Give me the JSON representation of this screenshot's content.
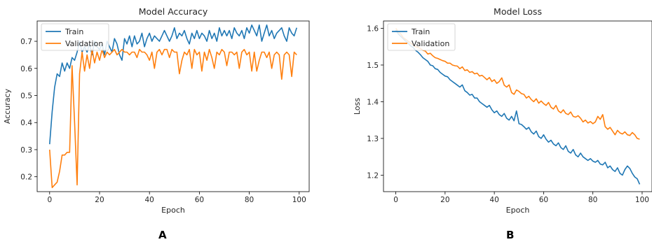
{
  "panels": [
    {
      "letter": "A"
    },
    {
      "letter": "B"
    }
  ],
  "chart_data": [
    {
      "type": "line",
      "title": "Model Accuracy",
      "xlabel": "Epoch",
      "ylabel": "Accuracy",
      "xlim": [
        -5,
        104
      ],
      "ylim": [
        0.145,
        0.775
      ],
      "xticks": [
        0,
        20,
        40,
        60,
        80,
        100
      ],
      "yticks": [
        0.2,
        0.3,
        0.4,
        0.5,
        0.6,
        0.7
      ],
      "grid": false,
      "legend_position": "top-left",
      "series": [
        {
          "name": "Train",
          "color": "#1f77b4",
          "x": [
            0,
            1,
            2,
            3,
            4,
            5,
            6,
            7,
            8,
            9,
            10,
            11,
            12,
            13,
            14,
            15,
            16,
            17,
            18,
            19,
            20,
            21,
            22,
            23,
            24,
            25,
            26,
            27,
            28,
            29,
            30,
            31,
            32,
            33,
            34,
            35,
            36,
            37,
            38,
            39,
            40,
            41,
            42,
            43,
            44,
            45,
            46,
            47,
            48,
            49,
            50,
            51,
            52,
            53,
            54,
            55,
            56,
            57,
            58,
            59,
            60,
            61,
            62,
            63,
            64,
            65,
            66,
            67,
            68,
            69,
            70,
            71,
            72,
            73,
            74,
            75,
            76,
            77,
            78,
            79,
            80,
            81,
            82,
            83,
            84,
            85,
            86,
            87,
            88,
            89,
            90,
            91,
            92,
            93,
            94,
            95,
            96,
            97,
            98,
            99
          ],
          "y": [
            0.32,
            0.44,
            0.53,
            0.58,
            0.57,
            0.62,
            0.59,
            0.62,
            0.6,
            0.64,
            0.63,
            0.66,
            0.7,
            0.66,
            0.68,
            0.66,
            0.69,
            0.65,
            0.7,
            0.68,
            0.67,
            0.69,
            0.65,
            0.7,
            0.68,
            0.66,
            0.71,
            0.69,
            0.65,
            0.63,
            0.71,
            0.69,
            0.72,
            0.68,
            0.72,
            0.69,
            0.7,
            0.73,
            0.68,
            0.71,
            0.73,
            0.7,
            0.72,
            0.71,
            0.7,
            0.72,
            0.74,
            0.72,
            0.7,
            0.72,
            0.75,
            0.71,
            0.73,
            0.72,
            0.74,
            0.71,
            0.69,
            0.73,
            0.71,
            0.74,
            0.71,
            0.73,
            0.72,
            0.7,
            0.74,
            0.71,
            0.73,
            0.7,
            0.75,
            0.72,
            0.74,
            0.72,
            0.74,
            0.71,
            0.75,
            0.73,
            0.72,
            0.74,
            0.71,
            0.75,
            0.73,
            0.76,
            0.74,
            0.72,
            0.76,
            0.7,
            0.73,
            0.76,
            0.72,
            0.74,
            0.71,
            0.73,
            0.74,
            0.75,
            0.72,
            0.7,
            0.75,
            0.73,
            0.72,
            0.75
          ]
        },
        {
          "name": "Validation",
          "color": "#ff7f0e",
          "x": [
            0,
            1,
            2,
            3,
            4,
            5,
            6,
            7,
            8,
            9,
            10,
            11,
            12,
            13,
            14,
            15,
            16,
            17,
            18,
            19,
            20,
            21,
            22,
            23,
            24,
            25,
            26,
            27,
            28,
            29,
            30,
            31,
            32,
            33,
            34,
            35,
            36,
            37,
            38,
            39,
            40,
            41,
            42,
            43,
            44,
            45,
            46,
            47,
            48,
            49,
            50,
            51,
            52,
            53,
            54,
            55,
            56,
            57,
            58,
            59,
            60,
            61,
            62,
            63,
            64,
            65,
            66,
            67,
            68,
            69,
            70,
            71,
            72,
            73,
            74,
            75,
            76,
            77,
            78,
            79,
            80,
            81,
            82,
            83,
            84,
            85,
            86,
            87,
            88,
            89,
            90,
            91,
            92,
            93,
            94,
            95,
            96,
            97,
            98,
            99
          ],
          "y": [
            0.3,
            0.16,
            0.17,
            0.18,
            0.22,
            0.28,
            0.28,
            0.29,
            0.29,
            0.61,
            0.4,
            0.17,
            0.58,
            0.66,
            0.59,
            0.65,
            0.6,
            0.67,
            0.62,
            0.66,
            0.63,
            0.67,
            0.64,
            0.66,
            0.65,
            0.66,
            0.67,
            0.65,
            0.66,
            0.67,
            0.66,
            0.66,
            0.65,
            0.66,
            0.66,
            0.64,
            0.67,
            0.66,
            0.66,
            0.65,
            0.63,
            0.66,
            0.6,
            0.66,
            0.67,
            0.65,
            0.67,
            0.67,
            0.64,
            0.67,
            0.66,
            0.66,
            0.58,
            0.63,
            0.66,
            0.65,
            0.67,
            0.6,
            0.67,
            0.65,
            0.66,
            0.59,
            0.66,
            0.63,
            0.67,
            0.64,
            0.6,
            0.66,
            0.65,
            0.67,
            0.66,
            0.61,
            0.66,
            0.66,
            0.65,
            0.66,
            0.6,
            0.66,
            0.67,
            0.65,
            0.66,
            0.59,
            0.66,
            0.59,
            0.63,
            0.66,
            0.66,
            0.64,
            0.66,
            0.6,
            0.65,
            0.66,
            0.65,
            0.56,
            0.65,
            0.66,
            0.65,
            0.57,
            0.66,
            0.65
          ]
        }
      ]
    },
    {
      "type": "line",
      "title": "Model Loss",
      "xlabel": "Epoch",
      "ylabel": "Loss",
      "xlim": [
        -5,
        104
      ],
      "ylim": [
        1.155,
        1.62
      ],
      "xticks": [
        0,
        20,
        40,
        60,
        80,
        100
      ],
      "yticks": [
        1.2,
        1.3,
        1.4,
        1.5,
        1.6
      ],
      "grid": false,
      "legend_position": "top-left",
      "series": [
        {
          "name": "Train",
          "color": "#1f77b4",
          "x": [
            0,
            1,
            2,
            3,
            4,
            5,
            6,
            7,
            8,
            9,
            10,
            11,
            12,
            13,
            14,
            15,
            16,
            17,
            18,
            19,
            20,
            21,
            22,
            23,
            24,
            25,
            26,
            27,
            28,
            29,
            30,
            31,
            32,
            33,
            34,
            35,
            36,
            37,
            38,
            39,
            40,
            41,
            42,
            43,
            44,
            45,
            46,
            47,
            48,
            49,
            50,
            51,
            52,
            53,
            54,
            55,
            56,
            57,
            58,
            59,
            60,
            61,
            62,
            63,
            64,
            65,
            66,
            67,
            68,
            69,
            70,
            71,
            72,
            73,
            74,
            75,
            76,
            77,
            78,
            79,
            80,
            81,
            82,
            83,
            84,
            85,
            86,
            87,
            88,
            89,
            90,
            91,
            92,
            93,
            94,
            95,
            96,
            97,
            98,
            99
          ],
          "y": [
            1.595,
            1.585,
            1.578,
            1.572,
            1.565,
            1.56,
            1.552,
            1.548,
            1.54,
            1.535,
            1.528,
            1.52,
            1.515,
            1.51,
            1.5,
            1.498,
            1.49,
            1.488,
            1.48,
            1.475,
            1.47,
            1.468,
            1.46,
            1.455,
            1.45,
            1.445,
            1.44,
            1.446,
            1.43,
            1.425,
            1.418,
            1.42,
            1.41,
            1.41,
            1.4,
            1.395,
            1.39,
            1.385,
            1.39,
            1.378,
            1.37,
            1.375,
            1.365,
            1.36,
            1.368,
            1.355,
            1.35,
            1.36,
            1.348,
            1.375,
            1.34,
            1.338,
            1.332,
            1.325,
            1.33,
            1.318,
            1.312,
            1.32,
            1.305,
            1.3,
            1.31,
            1.298,
            1.29,
            1.295,
            1.285,
            1.28,
            1.288,
            1.275,
            1.27,
            1.28,
            1.265,
            1.26,
            1.27,
            1.255,
            1.25,
            1.26,
            1.25,
            1.245,
            1.24,
            1.245,
            1.238,
            1.235,
            1.24,
            1.23,
            1.228,
            1.235,
            1.22,
            1.225,
            1.215,
            1.21,
            1.22,
            1.205,
            1.2,
            1.215,
            1.225,
            1.218,
            1.205,
            1.195,
            1.19,
            1.175
          ]
        },
        {
          "name": "Validation",
          "color": "#ff7f0e",
          "x": [
            0,
            1,
            2,
            3,
            4,
            5,
            6,
            7,
            8,
            9,
            10,
            11,
            12,
            13,
            14,
            15,
            16,
            17,
            18,
            19,
            20,
            21,
            22,
            23,
            24,
            25,
            26,
            27,
            28,
            29,
            30,
            31,
            32,
            33,
            34,
            35,
            36,
            37,
            38,
            39,
            40,
            41,
            42,
            43,
            44,
            45,
            46,
            47,
            48,
            49,
            50,
            51,
            52,
            53,
            54,
            55,
            56,
            57,
            58,
            59,
            60,
            61,
            62,
            63,
            64,
            65,
            66,
            67,
            68,
            69,
            70,
            71,
            72,
            73,
            74,
            75,
            76,
            77,
            78,
            79,
            80,
            81,
            82,
            83,
            84,
            85,
            86,
            87,
            88,
            89,
            90,
            91,
            92,
            93,
            94,
            95,
            96,
            97,
            98,
            99
          ],
          "y": [
            1.6,
            1.59,
            1.585,
            1.575,
            1.57,
            1.565,
            1.56,
            1.555,
            1.55,
            1.548,
            1.545,
            1.54,
            1.538,
            1.53,
            1.532,
            1.525,
            1.52,
            1.518,
            1.515,
            1.512,
            1.51,
            1.505,
            1.505,
            1.5,
            1.498,
            1.497,
            1.49,
            1.495,
            1.485,
            1.487,
            1.48,
            1.482,
            1.476,
            1.478,
            1.47,
            1.472,
            1.466,
            1.46,
            1.466,
            1.455,
            1.46,
            1.45,
            1.455,
            1.465,
            1.445,
            1.44,
            1.446,
            1.425,
            1.42,
            1.432,
            1.428,
            1.422,
            1.42,
            1.41,
            1.415,
            1.406,
            1.4,
            1.408,
            1.396,
            1.402,
            1.395,
            1.39,
            1.398,
            1.385,
            1.38,
            1.39,
            1.375,
            1.37,
            1.378,
            1.368,
            1.365,
            1.372,
            1.36,
            1.358,
            1.362,
            1.355,
            1.345,
            1.35,
            1.342,
            1.346,
            1.34,
            1.345,
            1.36,
            1.352,
            1.365,
            1.332,
            1.325,
            1.33,
            1.32,
            1.31,
            1.322,
            1.315,
            1.312,
            1.318,
            1.31,
            1.308,
            1.316,
            1.31,
            1.3,
            1.298
          ]
        }
      ]
    }
  ]
}
